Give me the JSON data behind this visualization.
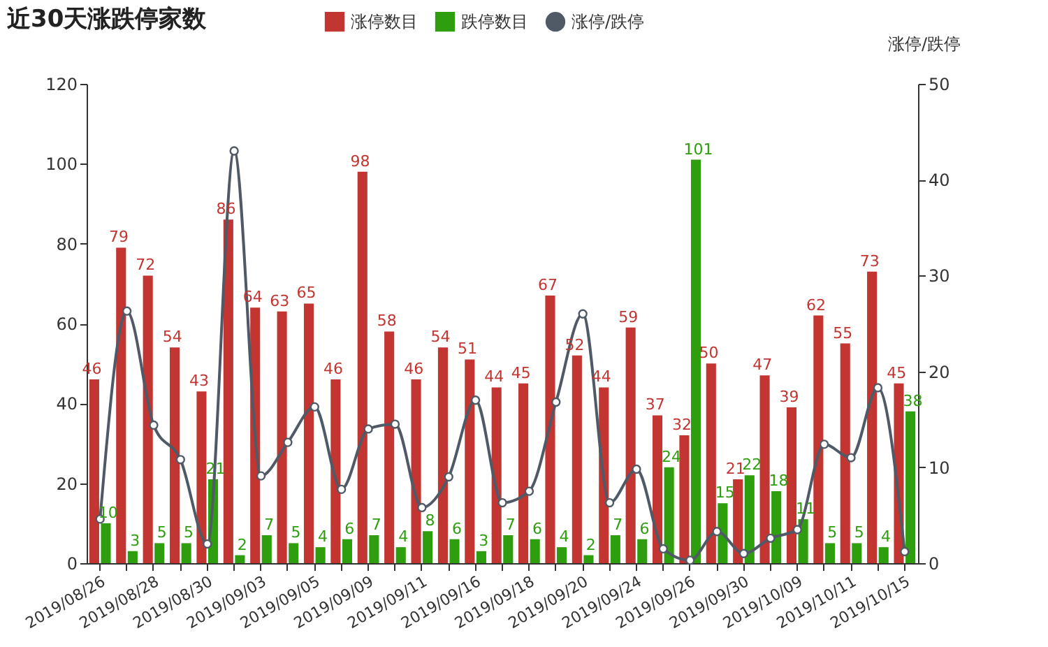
{
  "chart_data": {
    "type": "bar",
    "title": "近30天涨跌停家数",
    "y2label": "涨停/跌停",
    "categories": [
      "2019/08/26",
      null,
      "2019/08/28",
      null,
      "2019/08/30",
      null,
      "2019/09/03",
      null,
      "2019/09/05",
      null,
      "2019/09/09",
      null,
      "2019/09/11",
      null,
      "2019/09/16",
      null,
      "2019/09/18",
      null,
      "2019/09/20",
      null,
      "2019/09/24",
      null,
      "2019/09/26",
      null,
      "2019/09/30",
      null,
      "2019/10/09",
      null,
      "2019/10/11",
      null,
      "2019/10/15"
    ],
    "series": [
      {
        "name": "涨停数目",
        "color": "#c23531",
        "values": [
          46,
          79,
          72,
          54,
          43,
          86,
          64,
          63,
          65,
          46,
          98,
          58,
          46,
          54,
          51,
          44,
          45,
          67,
          52,
          44,
          59,
          37,
          32,
          50,
          21,
          47,
          39,
          62,
          55,
          73,
          45
        ],
        "value_labels": [
          "46",
          "79",
          "72",
          "54",
          "43",
          "86",
          "64",
          "63",
          "65",
          "46",
          "98",
          "58",
          "46",
          "54",
          "51",
          "44",
          "45",
          "67",
          "52",
          "44",
          "59",
          "37",
          "32",
          "50",
          "21",
          "47",
          "39",
          "62",
          "55",
          "73",
          "45"
        ]
      },
      {
        "name": "跌停数目",
        "color": "#2e9e0e",
        "values": [
          10,
          3,
          5,
          5,
          21,
          2,
          7,
          5,
          4,
          6,
          7,
          4,
          8,
          6,
          3,
          7,
          6,
          4,
          2,
          7,
          6,
          24,
          101,
          15,
          22,
          18,
          11,
          5,
          5,
          4,
          38
        ],
        "value_labels": [
          "10",
          "3",
          "5",
          "5",
          "21",
          "2",
          "7",
          "5",
          "4",
          "6",
          "7",
          "4",
          "8",
          "6",
          "3",
          "7",
          "6",
          "4",
          "2",
          "7",
          "6",
          "24",
          "101",
          "15",
          "22",
          "18",
          "11",
          "5",
          "5",
          "4",
          "38"
        ]
      },
      {
        "name": "涨停/跌停",
        "type": "line",
        "axis": "y2",
        "color": "#4f5a66",
        "values": [
          4.6,
          26.3,
          14.4,
          10.8,
          2.0,
          43.0,
          9.1,
          12.6,
          16.3,
          7.7,
          14.0,
          14.5,
          5.8,
          9.0,
          17.0,
          6.3,
          7.5,
          16.8,
          26.0,
          6.3,
          9.8,
          1.5,
          0.3,
          3.3,
          1.0,
          2.6,
          3.5,
          12.4,
          11.0,
          18.3,
          1.2
        ]
      }
    ],
    "ylim": [
      0,
      120
    ],
    "yticks": [
      0,
      20,
      40,
      60,
      80,
      100,
      120
    ],
    "y2lim": [
      0,
      50
    ],
    "y2ticks": [
      0,
      10,
      20,
      30,
      40,
      50
    ],
    "grid": false,
    "legend": "top",
    "marker": "circle",
    "line_style": "solid"
  }
}
